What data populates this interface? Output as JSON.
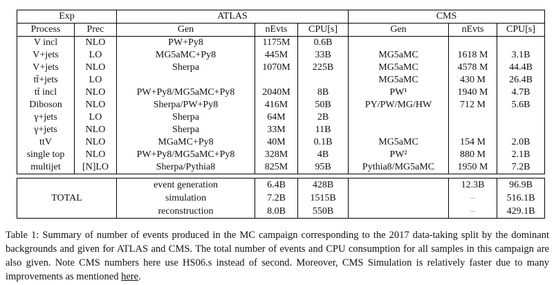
{
  "table": {
    "header": {
      "exp": "Exp",
      "atlas": "ATLAS",
      "cms": "CMS",
      "process": "Process",
      "prec": "Prec",
      "atlas_gen": "Gen",
      "atlas_nevts": "nEvts",
      "atlas_cpu": "CPU[s]",
      "cms_gen": "Gen",
      "cms_nevts": "nEvts",
      "cms_cpu": "CPU[s]"
    },
    "column_keys": [
      "process",
      "prec",
      "atlas_gen",
      "atlas_nevts",
      "atlas_cpu",
      "cms_gen",
      "cms_nevts",
      "cms_cpu"
    ],
    "rows": [
      {
        "process": "V incl",
        "prec": "NLO",
        "atlas_gen": "PW+Py8",
        "atlas_nevts": "1175M",
        "atlas_cpu": "0.6B",
        "cms_gen": "",
        "cms_nevts": "",
        "cms_cpu": ""
      },
      {
        "process": "V+jets",
        "prec": "LO",
        "atlas_gen": "MG5aMC+Py8",
        "atlas_nevts": "445M",
        "atlas_cpu": "33B",
        "cms_gen": "MG5aMC",
        "cms_nevts": "1618 M",
        "cms_cpu": "3.1B"
      },
      {
        "process": "V+jets",
        "prec": "NLO",
        "atlas_gen": "Sherpa",
        "atlas_nevts": "1070M",
        "atlas_cpu": "225B",
        "cms_gen": "MG5aMC",
        "cms_nevts": "4578 M",
        "cms_cpu": "44.4B"
      },
      {
        "process": "tt̄+jets",
        "prec": "LO",
        "atlas_gen": "",
        "atlas_nevts": "",
        "atlas_cpu": "",
        "cms_gen": "MG5aMC",
        "cms_nevts": "430 M",
        "cms_cpu": "26.4B"
      },
      {
        "process": "tt̄ incl",
        "prec": "NLO",
        "atlas_gen": "PW+Py8/MG5aMC+Py8",
        "atlas_nevts": "2040M",
        "atlas_cpu": "8B",
        "cms_gen": "PW¹",
        "cms_nevts": "1940 M",
        "cms_cpu": "4.7B"
      },
      {
        "process": "Diboson",
        "prec": "NLO",
        "atlas_gen": "Sherpa/PW+Py8",
        "atlas_nevts": "416M",
        "atlas_cpu": "50B",
        "cms_gen": "PY/PW/MG/HW",
        "cms_nevts": "712 M",
        "cms_cpu": "5.6B"
      },
      {
        "process": "γ+jets",
        "prec": "LO",
        "atlas_gen": "Sherpa",
        "atlas_nevts": "64M",
        "atlas_cpu": "2B",
        "cms_gen": "",
        "cms_nevts": "",
        "cms_cpu": ""
      },
      {
        "process": "γ+jets",
        "prec": "NLO",
        "atlas_gen": "Sherpa",
        "atlas_nevts": "33M",
        "atlas_cpu": "11B",
        "cms_gen": "",
        "cms_nevts": "",
        "cms_cpu": ""
      },
      {
        "process": "ttV",
        "prec": "NLO",
        "atlas_gen": "MGaMC+Py8",
        "atlas_nevts": "40M",
        "atlas_cpu": "0.1B",
        "cms_gen": "MG5aMC",
        "cms_nevts": "154 M",
        "cms_cpu": "2.0B"
      },
      {
        "process": "single top",
        "prec": "NLO",
        "atlas_gen": "PW+Py8/MG5aMC+Py8",
        "atlas_nevts": "328M",
        "atlas_cpu": "4B",
        "cms_gen": "PW²",
        "cms_nevts": "880 M",
        "cms_cpu": "2.1B"
      },
      {
        "process": "multijet",
        "prec": "[N]LO",
        "atlas_gen": "Sherpa/Pythia8",
        "atlas_nevts": "825M",
        "atlas_cpu": "95B",
        "cms_gen": "Pythia8/MG5aMC",
        "cms_nevts": "1950 M",
        "cms_cpu": "7.2B"
      }
    ],
    "totals": {
      "label": "TOTAL",
      "rows": [
        {
          "stage": "event generation",
          "atlas_nevts": "6.4B",
          "atlas_cpu": "428B",
          "cms_gen": "",
          "cms_nevts": "12.3B",
          "cms_cpu": "96.9B"
        },
        {
          "stage": "simulation",
          "atlas_nevts": "7.2B",
          "atlas_cpu": "1515B",
          "cms_gen": "",
          "cms_nevts": "–",
          "cms_cpu": "516.1B"
        },
        {
          "stage": "reconstruction",
          "atlas_nevts": "8.0B",
          "atlas_cpu": "550B",
          "cms_gen": "",
          "cms_nevts": "–",
          "cms_cpu": "429.1B"
        }
      ]
    }
  },
  "caption": {
    "text": "Table 1: Summary of number of events produced in the MC campaign corresponding to the 2017 data-taking split by the dominant backgrounds and given for ATLAS and CMS. The total number of events and CPU consumption for all samples in this campaign are also given. Note CMS numbers here use HS06.s instead of second. Moreover, CMS Simulation is relatively faster due to many improvements as mentioned ",
    "link_text": "here",
    "after_link": "."
  }
}
